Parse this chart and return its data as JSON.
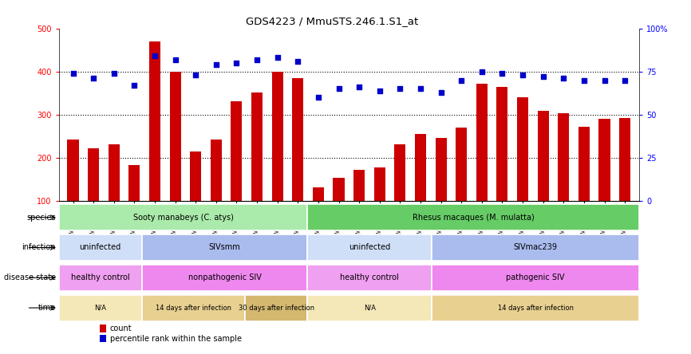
{
  "title": "GDS4223 / MmuSTS.246.1.S1_at",
  "samples": [
    "GSM440057",
    "GSM440058",
    "GSM440059",
    "GSM440060",
    "GSM440061",
    "GSM440062",
    "GSM440063",
    "GSM440064",
    "GSM440065",
    "GSM440066",
    "GSM440067",
    "GSM440068",
    "GSM440069",
    "GSM440070",
    "GSM440071",
    "GSM440072",
    "GSM440073",
    "GSM440074",
    "GSM440075",
    "GSM440076",
    "GSM440077",
    "GSM440078",
    "GSM440079",
    "GSM440080",
    "GSM440081",
    "GSM440082",
    "GSM440083",
    "GSM440084"
  ],
  "counts": [
    242,
    222,
    231,
    184,
    469,
    400,
    215,
    243,
    331,
    352,
    400,
    384,
    133,
    155,
    173,
    179,
    231,
    256,
    246,
    271,
    372,
    365,
    341,
    310,
    303,
    273,
    290,
    293
  ],
  "percentiles": [
    74,
    71,
    74,
    67,
    84,
    82,
    73,
    79,
    80,
    82,
    83,
    81,
    60,
    65,
    66,
    64,
    65,
    65,
    63,
    70,
    75,
    74,
    73,
    72,
    71,
    70,
    70,
    70
  ],
  "bar_color": "#cc0000",
  "dot_color": "#0000cc",
  "species_row": {
    "label": "species",
    "segments": [
      {
        "text": "Sooty manabeys (C. atys)",
        "start": 0,
        "end": 12,
        "color": "#aaeaaa"
      },
      {
        "text": "Rhesus macaques (M. mulatta)",
        "start": 12,
        "end": 28,
        "color": "#66cc66"
      }
    ]
  },
  "infection_row": {
    "label": "infection",
    "segments": [
      {
        "text": "uninfected",
        "start": 0,
        "end": 4,
        "color": "#d0dff8"
      },
      {
        "text": "SIVsmm",
        "start": 4,
        "end": 12,
        "color": "#aabbee"
      },
      {
        "text": "uninfected",
        "start": 12,
        "end": 18,
        "color": "#d0dff8"
      },
      {
        "text": "SIVmac239",
        "start": 18,
        "end": 28,
        "color": "#aabbee"
      }
    ]
  },
  "disease_row": {
    "label": "disease state",
    "segments": [
      {
        "text": "healthy control",
        "start": 0,
        "end": 4,
        "color": "#f0a0f0"
      },
      {
        "text": "nonpathogenic SIV",
        "start": 4,
        "end": 12,
        "color": "#ee88ee"
      },
      {
        "text": "healthy control",
        "start": 12,
        "end": 18,
        "color": "#f0a0f0"
      },
      {
        "text": "pathogenic SIV",
        "start": 18,
        "end": 28,
        "color": "#ee88ee"
      }
    ]
  },
  "time_row": {
    "label": "time",
    "segments": [
      {
        "text": "N/A",
        "start": 0,
        "end": 4,
        "color": "#f5e8b8"
      },
      {
        "text": "14 days after infection",
        "start": 4,
        "end": 9,
        "color": "#e8d090"
      },
      {
        "text": "30 days after infection",
        "start": 9,
        "end": 12,
        "color": "#d4b870"
      },
      {
        "text": "N/A",
        "start": 12,
        "end": 18,
        "color": "#f5e8b8"
      },
      {
        "text": "14 days after infection",
        "start": 18,
        "end": 28,
        "color": "#e8d090"
      }
    ]
  }
}
